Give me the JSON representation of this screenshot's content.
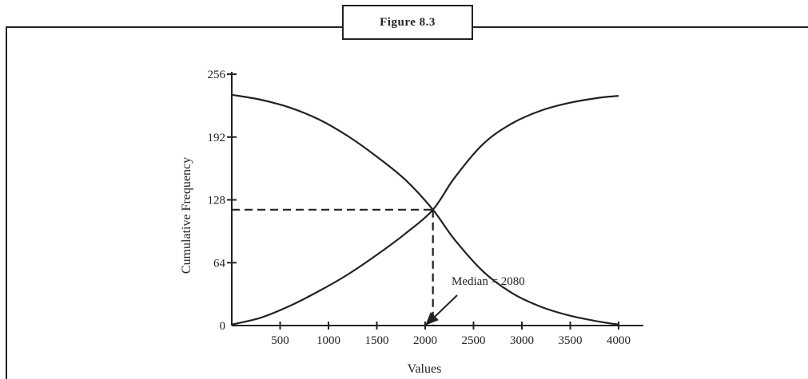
{
  "figure_label": "Figure 8.3",
  "chart_data": {
    "type": "line",
    "title": "",
    "xlabel": "Values",
    "ylabel": "Cumulative Frequency",
    "xlim": [
      0,
      4000
    ],
    "ylim": [
      0,
      256
    ],
    "x_ticks": [
      500,
      1000,
      1500,
      2000,
      2500,
      3000,
      3500,
      4000
    ],
    "x_tick_labels": [
      "500",
      "1000",
      "1500",
      "2000",
      "2500",
      "3000",
      "3500",
      "4000"
    ],
    "y_ticks": [
      0,
      64,
      128,
      192,
      256
    ],
    "y_tick_labels": [
      "0",
      "64",
      "128",
      "192",
      "256"
    ],
    "grid": false,
    "series": [
      {
        "points": [
          [
            0,
            235
          ],
          [
            300,
            230
          ],
          [
            600,
            222
          ],
          [
            900,
            210
          ],
          [
            1200,
            193
          ],
          [
            1500,
            172
          ],
          [
            1800,
            148
          ],
          [
            2080,
            118
          ],
          [
            2300,
            88
          ],
          [
            2600,
            55
          ],
          [
            2900,
            33
          ],
          [
            3200,
            19
          ],
          [
            3500,
            10
          ],
          [
            3800,
            4
          ],
          [
            4000,
            1
          ]
        ]
      },
      {
        "points": [
          [
            0,
            1
          ],
          [
            300,
            8
          ],
          [
            600,
            20
          ],
          [
            900,
            35
          ],
          [
            1200,
            52
          ],
          [
            1500,
            72
          ],
          [
            1800,
            94
          ],
          [
            2080,
            118
          ],
          [
            2300,
            150
          ],
          [
            2600,
            185
          ],
          [
            2900,
            206
          ],
          [
            3200,
            219
          ],
          [
            3500,
            227
          ],
          [
            3800,
            232
          ],
          [
            4000,
            234
          ]
        ]
      }
    ],
    "median": {
      "x": 2080,
      "y": 118
    },
    "annotation": {
      "text": "Median = 2080",
      "x": 2080,
      "y": 118
    }
  }
}
